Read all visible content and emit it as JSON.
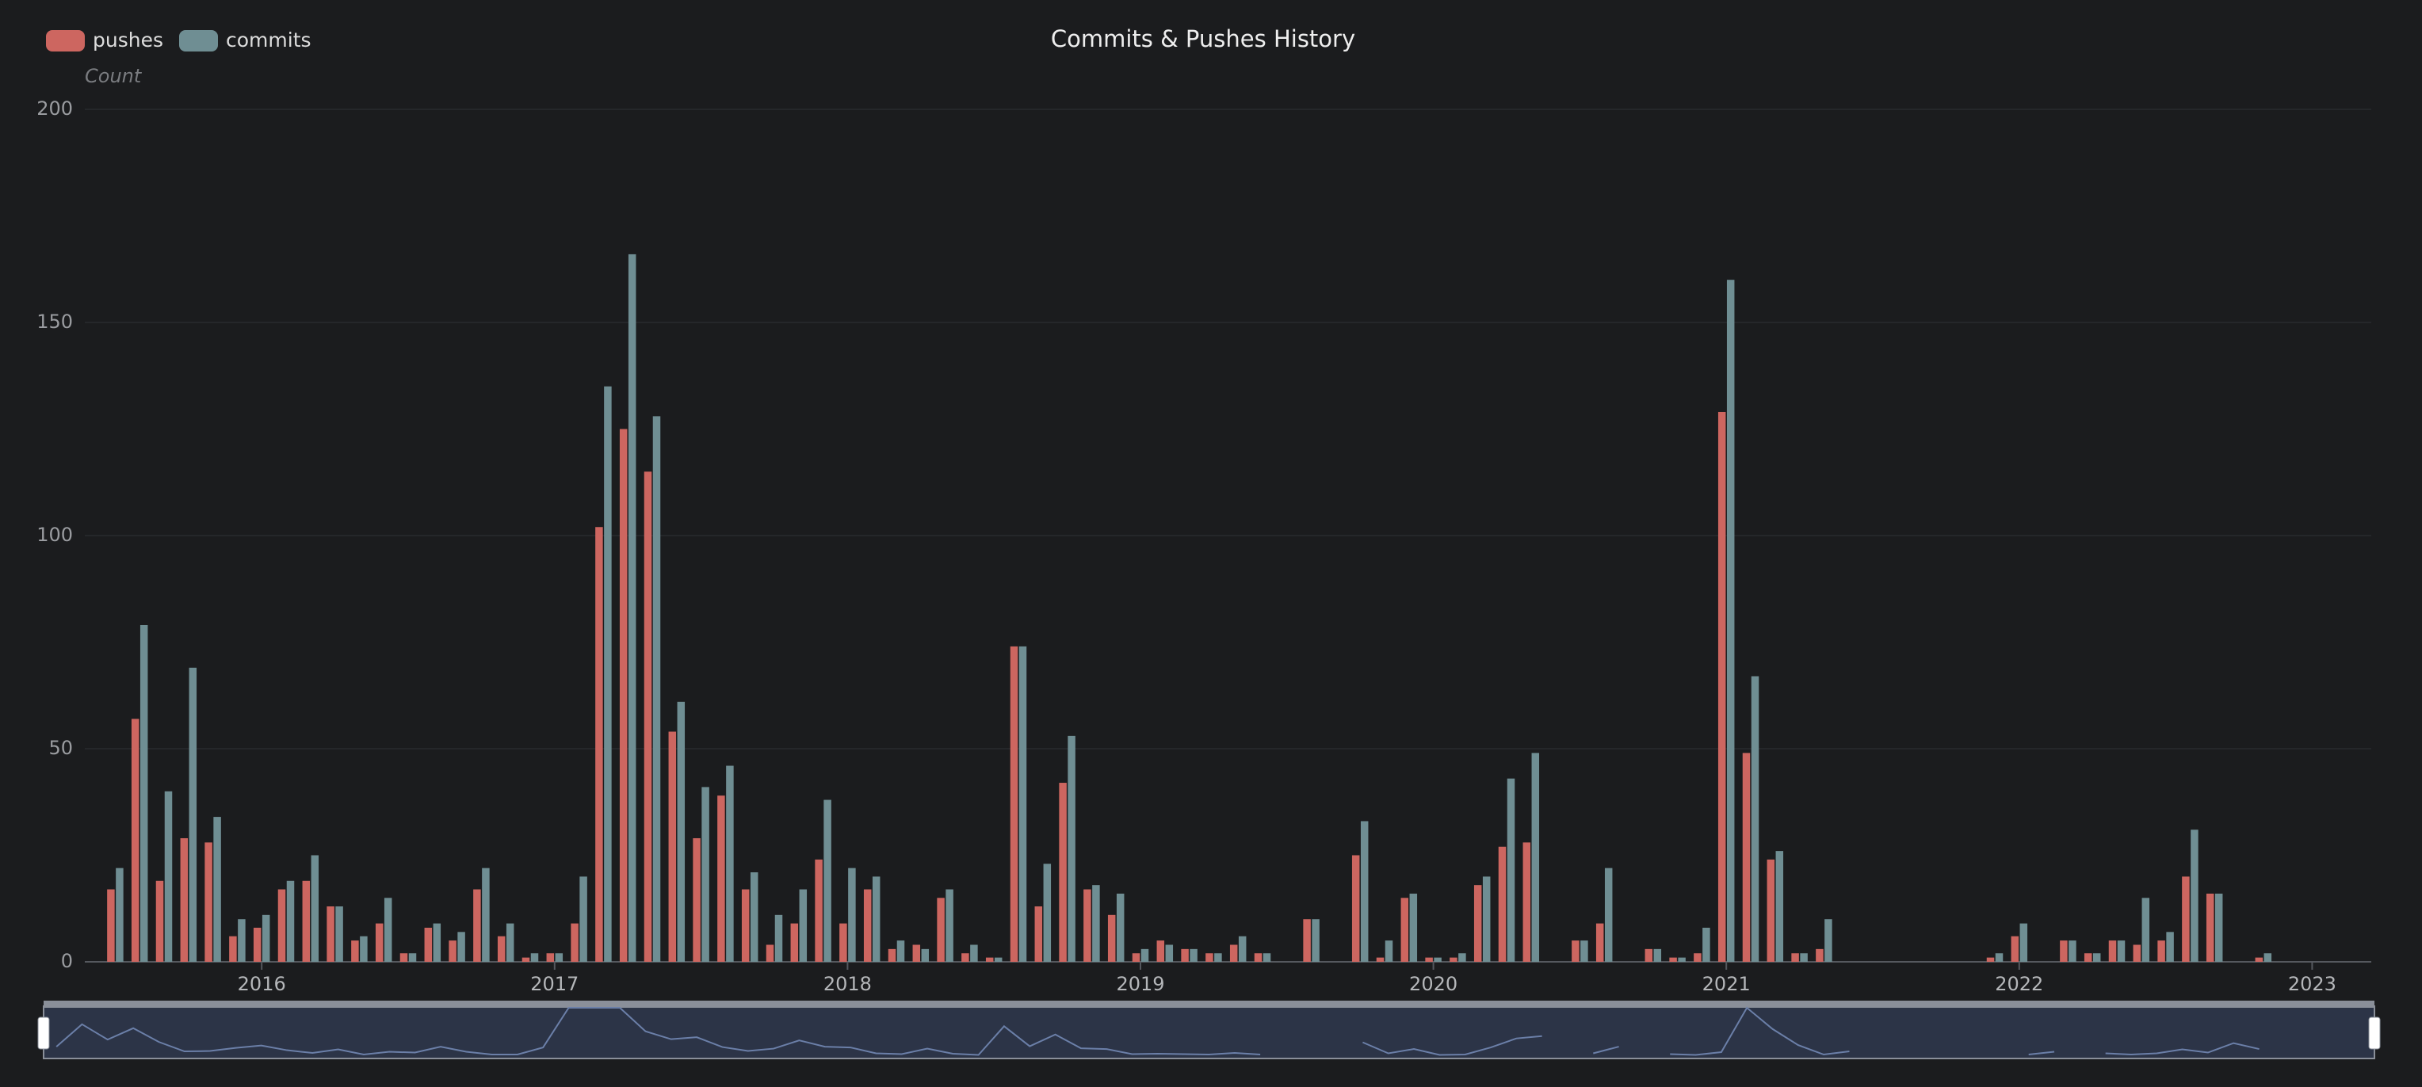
{
  "chart_data": {
    "type": "bar",
    "title": "Commits & Pushes History",
    "y_label": "Count",
    "categories": [
      null,
      null,
      null,
      null,
      null,
      null,
      "2016",
      null,
      null,
      null,
      null,
      null,
      null,
      null,
      null,
      null,
      null,
      null,
      "2017",
      null,
      null,
      null,
      null,
      null,
      null,
      null,
      null,
      null,
      null,
      null,
      "2018",
      null,
      null,
      null,
      null,
      null,
      null,
      null,
      null,
      null,
      null,
      null,
      "2019",
      null,
      null,
      null,
      null,
      null,
      null,
      null,
      null,
      null,
      null,
      null,
      "2020",
      null,
      null,
      null,
      null,
      null,
      null,
      null,
      null,
      null,
      null,
      null,
      "2021",
      null,
      null,
      null,
      null,
      null,
      null,
      null,
      null,
      null,
      null,
      null,
      "2022",
      null,
      null,
      null,
      null,
      null,
      null,
      null,
      null,
      null,
      null,
      null,
      "2023"
    ],
    "series": [
      {
        "name": "pushes",
        "color": "#cd6660",
        "values": [
          17,
          57,
          19,
          29,
          28,
          6,
          8,
          17,
          19,
          13,
          5,
          9,
          2,
          8,
          5,
          17,
          6,
          1,
          2,
          9,
          102,
          125,
          115,
          54,
          29,
          39,
          17,
          4,
          9,
          24,
          9,
          17,
          3,
          4,
          15,
          2,
          1,
          74,
          13,
          42,
          17,
          11,
          2,
          5,
          3,
          2,
          4,
          2,
          null,
          10,
          null,
          25,
          1,
          15,
          1,
          1,
          18,
          27,
          28,
          null,
          5,
          9,
          null,
          3,
          1,
          2,
          129,
          49,
          24,
          2,
          3,
          null,
          null,
          null,
          null,
          null,
          null,
          1,
          6,
          null,
          5,
          2,
          5,
          4,
          5,
          20,
          16,
          null,
          1,
          null,
          null
        ]
      },
      {
        "name": "commits",
        "color": "#6f8e93",
        "values": [
          22,
          79,
          40,
          69,
          34,
          10,
          11,
          19,
          25,
          13,
          6,
          15,
          2,
          9,
          7,
          22,
          9,
          2,
          2,
          20,
          135,
          166,
          128,
          61,
          41,
          46,
          21,
          11,
          17,
          38,
          22,
          20,
          5,
          3,
          17,
          4,
          1,
          74,
          23,
          53,
          18,
          16,
          3,
          4,
          3,
          2,
          6,
          2,
          null,
          10,
          null,
          33,
          5,
          16,
          1,
          2,
          20,
          43,
          49,
          null,
          5,
          22,
          null,
          3,
          1,
          8,
          160,
          67,
          26,
          2,
          10,
          null,
          null,
          null,
          null,
          null,
          null,
          2,
          9,
          null,
          5,
          2,
          5,
          15,
          7,
          31,
          16,
          null,
          2,
          null,
          null
        ]
      }
    ],
    "ylim": [
      0,
      200
    ],
    "yticks": [
      0,
      50,
      100,
      150,
      200
    ],
    "grid": true,
    "legend": "top-left"
  }
}
